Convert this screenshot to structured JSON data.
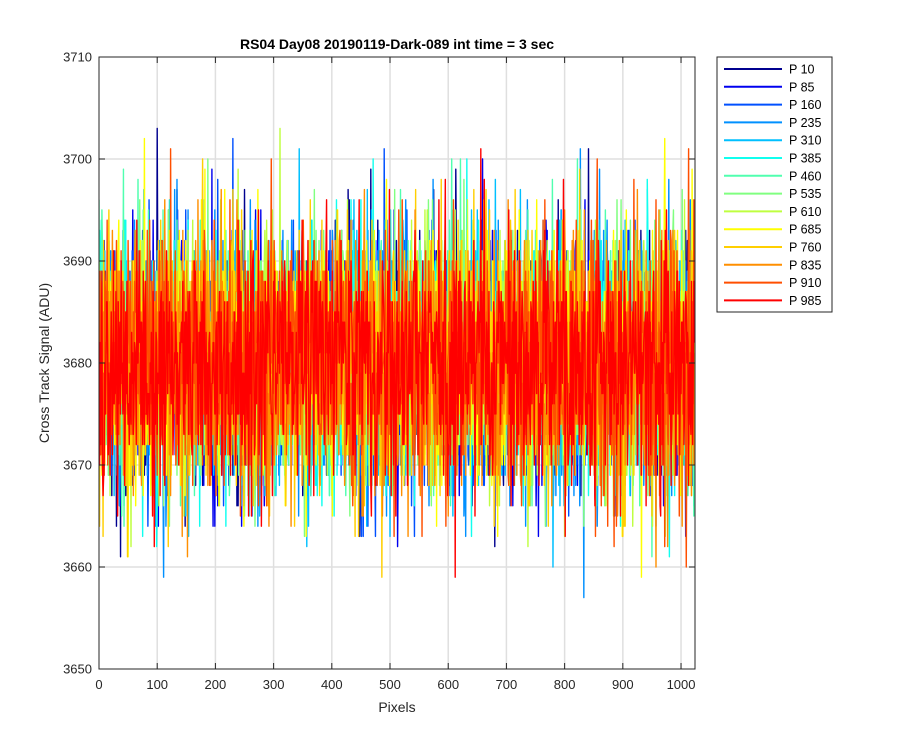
{
  "chart_data": {
    "type": "line",
    "title": "RS04 Day08 20190119-Dark-089 int time = 3 sec",
    "xlabel": "Pixels",
    "ylabel": "Cross Track Signal (ADU)",
    "xlim": [
      0,
      1024
    ],
    "ylim": [
      3650,
      3710
    ],
    "xticks": [
      0,
      100,
      200,
      300,
      400,
      500,
      600,
      700,
      800,
      900,
      1000
    ],
    "yticks": [
      3650,
      3660,
      3670,
      3680,
      3690,
      3700,
      3710
    ],
    "grid": true,
    "legend_position": "outside-right",
    "series_shape": {
      "n_pixels": 1024,
      "center": 3680,
      "typical_range": [
        3665,
        3695
      ],
      "extremes": [
        3651,
        3707
      ],
      "note": "Dark-frame noise traces; each series is a noisy signal around ~3680 ADU"
    },
    "series": [
      {
        "name": "P 10",
        "color": "#00008f"
      },
      {
        "name": "P 85",
        "color": "#0000ef"
      },
      {
        "name": "P 160",
        "color": "#0050ff"
      },
      {
        "name": "P 235",
        "color": "#0090ff"
      },
      {
        "name": "P 310",
        "color": "#00c0ff"
      },
      {
        "name": "P 385",
        "color": "#10ffef"
      },
      {
        "name": "P 460",
        "color": "#50ffaf"
      },
      {
        "name": "P 535",
        "color": "#80ff80"
      },
      {
        "name": "P 610",
        "color": "#bfff40"
      },
      {
        "name": "P 685",
        "color": "#ffff00"
      },
      {
        "name": "P 760",
        "color": "#ffcf00"
      },
      {
        "name": "P 835",
        "color": "#ff8f00"
      },
      {
        "name": "P 910",
        "color": "#ff4f00"
      },
      {
        "name": "P 985",
        "color": "#ff0000"
      }
    ]
  }
}
